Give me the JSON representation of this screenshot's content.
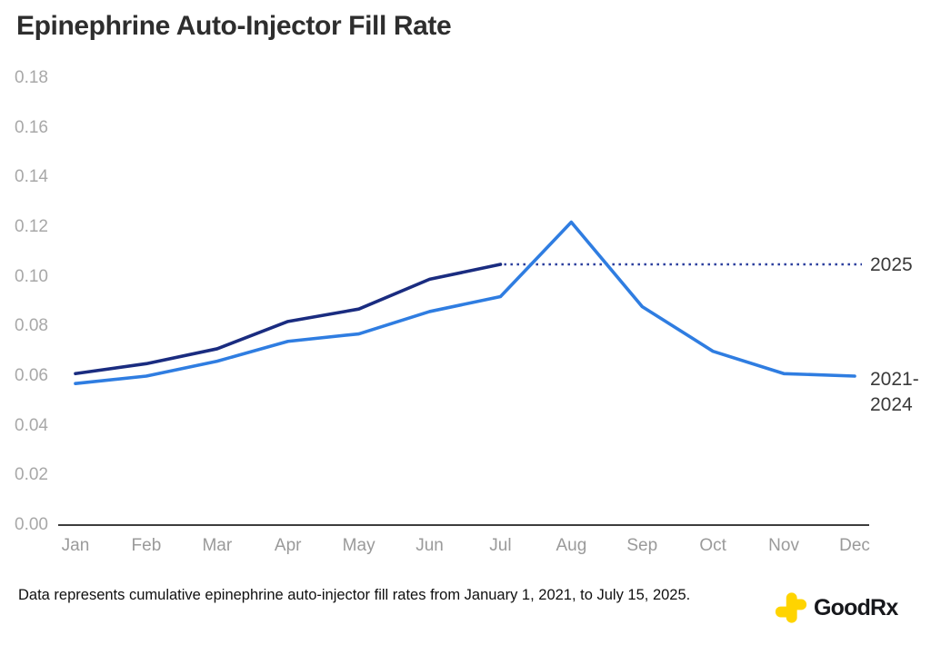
{
  "title": "Epinephrine Auto-Injector Fill Rate",
  "footnote": "Data represents cumulative epinephrine auto-injector fill rates from January 1, 2021, to July 15, 2025.",
  "logo": {
    "brand": "GoodRx",
    "icon": "goodrx-cross-icon",
    "icon_color": "#FFD400",
    "text_color": "#17181c"
  },
  "axis_colors": {
    "x_axis_line": "#3d3d3d",
    "ytick_text": "#a8a8a8",
    "xtick_text": "#9a9a9a"
  },
  "chart_data": {
    "type": "line",
    "title": "Epinephrine Auto-Injector Fill Rate",
    "categories": [
      "Jan",
      "Feb",
      "Mar",
      "Apr",
      "May",
      "Jun",
      "Jul",
      "Aug",
      "Sep",
      "Oct",
      "Nov",
      "Dec"
    ],
    "ylim": [
      0,
      0.18
    ],
    "ytick_step": 0.02,
    "ytick_labels": [
      "0.18",
      "0.16",
      "0.14",
      "0.12",
      "0.10",
      "0.08",
      "0.06",
      "0.04",
      "0.02",
      "0.00"
    ],
    "grid": false,
    "legend_position": "end-of-line-labels-right",
    "series": [
      {
        "name": "2025",
        "color": "#1a2c80",
        "line_style": "solid",
        "values": [
          0.061,
          0.065,
          0.071,
          0.082,
          0.087,
          0.099,
          0.105
        ],
        "end_label": "2025",
        "projection": {
          "style": "dotted",
          "color": "#2a3e9d",
          "level": 0.105,
          "from_month": "Jul",
          "to_month": "Dec"
        }
      },
      {
        "name": "2021-2024",
        "color": "#2f7de1",
        "line_style": "solid",
        "values": [
          0.057,
          0.06,
          0.066,
          0.074,
          0.077,
          0.086,
          0.092,
          0.122,
          0.088,
          0.07,
          0.061,
          0.06
        ],
        "end_label_lines": [
          "2021-",
          "2024"
        ]
      }
    ]
  }
}
